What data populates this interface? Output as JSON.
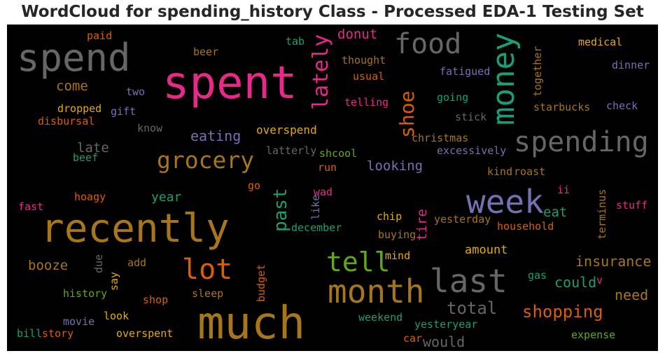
{
  "title": "WordCloud for spending_history Class - Processed EDA-1 Testing Set",
  "words": [
    {
      "text": "spent",
      "color": "#e7298a"
    },
    {
      "text": "much",
      "color": "#a6761d"
    },
    {
      "text": "recently",
      "color": "#a6761d"
    },
    {
      "text": "spend",
      "color": "#666666"
    },
    {
      "text": "food",
      "color": "#666666"
    },
    {
      "text": "money",
      "color": "#1b9e77"
    },
    {
      "text": "spending",
      "color": "#666666"
    },
    {
      "text": "week",
      "color": "#7570b3"
    },
    {
      "text": "month",
      "color": "#a6761d"
    },
    {
      "text": "last",
      "color": "#666666"
    },
    {
      "text": "lot",
      "color": "#d95f02"
    },
    {
      "text": "tell",
      "color": "#66a61e"
    },
    {
      "text": "grocery",
      "color": "#a6761d"
    },
    {
      "text": "lately",
      "color": "#e7298a"
    },
    {
      "text": "shoe",
      "color": "#d95f02"
    },
    {
      "text": "shopping",
      "color": "#d95f02"
    },
    {
      "text": "total",
      "color": "#666666"
    },
    {
      "text": "past",
      "color": "#1b9e77"
    },
    {
      "text": "eating",
      "color": "#7570b3"
    },
    {
      "text": "insurance",
      "color": "#a6761d"
    },
    {
      "text": "could",
      "color": "#1b9e77"
    },
    {
      "text": "need",
      "color": "#a6761d"
    },
    {
      "text": "would",
      "color": "#666666"
    },
    {
      "text": "looking",
      "color": "#7570b3"
    },
    {
      "text": "late",
      "color": "#666666"
    },
    {
      "text": "come",
      "color": "#a6761d"
    },
    {
      "text": "booze",
      "color": "#a6761d"
    },
    {
      "text": "eat",
      "color": "#1b9e77"
    },
    {
      "text": "tire",
      "color": "#e7298a"
    },
    {
      "text": "amount",
      "color": "#e6ab02"
    },
    {
      "text": "donut",
      "color": "#e7298a"
    },
    {
      "text": "year",
      "color": "#1b9e77"
    },
    {
      "text": "overspend",
      "color": "#e6ab02"
    },
    {
      "text": "christmas",
      "color": "#a6761d"
    },
    {
      "text": "excessively",
      "color": "#7570b3"
    },
    {
      "text": "starbucks",
      "color": "#a6761d"
    },
    {
      "text": "check",
      "color": "#7570b3"
    },
    {
      "text": "medical",
      "color": "#e6ab02"
    },
    {
      "text": "dinner",
      "color": "#7570b3"
    },
    {
      "text": "together",
      "color": "#a6761d"
    },
    {
      "text": "fatigued",
      "color": "#7570b3"
    },
    {
      "text": "thought",
      "color": "#a6761d"
    },
    {
      "text": "usual",
      "color": "#d95f02"
    },
    {
      "text": "telling",
      "color": "#e7298a"
    },
    {
      "text": "going",
      "color": "#1b9e77"
    },
    {
      "text": "stick",
      "color": "#666666"
    },
    {
      "text": "tab",
      "color": "#1b9e77"
    },
    {
      "text": "beer",
      "color": "#a6761d"
    },
    {
      "text": "paid",
      "color": "#d95f02"
    },
    {
      "text": "two",
      "color": "#7570b3"
    },
    {
      "text": "gift",
      "color": "#7570b3"
    },
    {
      "text": "dropped",
      "color": "#e6ab02"
    },
    {
      "text": "disbursal",
      "color": "#d95f02"
    },
    {
      "text": "know",
      "color": "#666666"
    },
    {
      "text": "beef",
      "color": "#1b9e77"
    },
    {
      "text": "latterly",
      "color": "#666666"
    },
    {
      "text": "shcool",
      "color": "#66a61e"
    },
    {
      "text": "run",
      "color": "#d95f02"
    },
    {
      "text": "kind",
      "color": "#a6761d"
    },
    {
      "text": "roast",
      "color": "#a6761d"
    },
    {
      "text": "hoagy",
      "color": "#d95f02"
    },
    {
      "text": "fast",
      "color": "#e7298a"
    },
    {
      "text": "go",
      "color": "#d95f02"
    },
    {
      "text": "wad",
      "color": "#e7298a"
    },
    {
      "text": "like",
      "color": "#7570b3"
    },
    {
      "text": "december",
      "color": "#1b9e77"
    },
    {
      "text": "chip",
      "color": "#e6ab02"
    },
    {
      "text": "buying",
      "color": "#a6761d"
    },
    {
      "text": "yesterday",
      "color": "#a6761d"
    },
    {
      "text": "household",
      "color": "#d95f02"
    },
    {
      "text": "ii",
      "color": "#e7298a"
    },
    {
      "text": "stuff",
      "color": "#e7298a"
    },
    {
      "text": "terminus",
      "color": "#a6761d"
    },
    {
      "text": "mind",
      "color": "#e6ab02"
    },
    {
      "text": "due",
      "color": "#666666"
    },
    {
      "text": "add",
      "color": "#a6761d"
    },
    {
      "text": "say",
      "color": "#e6ab02"
    },
    {
      "text": "budget",
      "color": "#d95f02"
    },
    {
      "text": "history",
      "color": "#66a61e"
    },
    {
      "text": "shop",
      "color": "#d95f02"
    },
    {
      "text": "sleep",
      "color": "#a6761d"
    },
    {
      "text": "movie",
      "color": "#7570b3"
    },
    {
      "text": "look",
      "color": "#e6ab02"
    },
    {
      "text": "bill",
      "color": "#1b9e77"
    },
    {
      "text": "story",
      "color": "#d95f02"
    },
    {
      "text": "overspent",
      "color": "#e6ab02"
    },
    {
      "text": "weekend",
      "color": "#1b9e77"
    },
    {
      "text": "yesteryear",
      "color": "#1b9e77"
    },
    {
      "text": "car",
      "color": "#d95f02"
    },
    {
      "text": "gas",
      "color": "#1b9e77"
    },
    {
      "text": "v",
      "color": "#e7298a"
    },
    {
      "text": "expense",
      "color": "#66a61e"
    }
  ]
}
